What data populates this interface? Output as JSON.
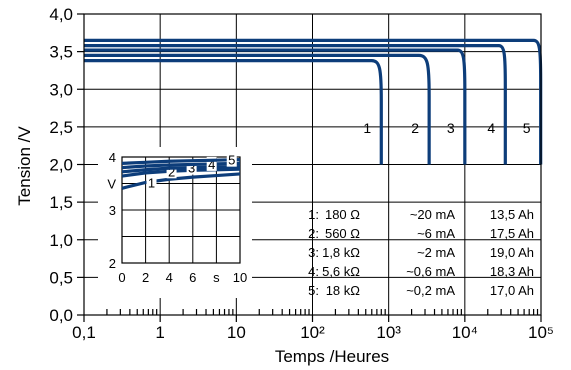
{
  "chart_data": {
    "type": "line",
    "x_scale": "log",
    "x_label": "Temps /Heures",
    "y_label": "Tension /V",
    "xlim": [
      0.1,
      100000
    ],
    "ylim": [
      0.0,
      4.0
    ],
    "x_tick_labels": [
      "0,1",
      "1",
      "10",
      "10²",
      "10³",
      "10⁴",
      "10⁵"
    ],
    "y_tick_labels": [
      "0,0",
      "0,5",
      "1,0",
      "1,5",
      "2,0",
      "2,5",
      "3,0",
      "3,5",
      "4,0"
    ],
    "series_color": "#0d3d7a",
    "series": [
      {
        "label": "1",
        "plateau_v": 3.38,
        "knee_hours": 600,
        "end_hours": 800,
        "end_v": 2.0
      },
      {
        "label": "2",
        "plateau_v": 3.45,
        "knee_hours": 2500,
        "end_hours": 3400,
        "end_v": 2.0
      },
      {
        "label": "3",
        "plateau_v": 3.52,
        "knee_hours": 8000,
        "end_hours": 10000,
        "end_v": 2.0
      },
      {
        "label": "4",
        "plateau_v": 3.58,
        "knee_hours": 28000,
        "end_hours": 34000,
        "end_v": 2.0
      },
      {
        "label": "5",
        "plateau_v": 3.65,
        "knee_hours": 80000,
        "end_hours": 99000,
        "end_v": 2.0
      }
    ],
    "legend": [
      {
        "num": "1:",
        "resistance": "180 Ω",
        "current": "~20 mA",
        "capacity": "13,5 Ah"
      },
      {
        "num": "2:",
        "resistance": "560 Ω",
        "current": "~6 mA",
        "capacity": "17,5 Ah"
      },
      {
        "num": "3:",
        "resistance": "1,8 kΩ",
        "current": "~2 mA",
        "capacity": "19,0 Ah"
      },
      {
        "num": "4:",
        "resistance": "5,6 kΩ",
        "current": "~0,6 mA",
        "capacity": "18,3 Ah"
      },
      {
        "num": "5:",
        "resistance": "18 kΩ",
        "current": "~0,2 mA",
        "capacity": "17,0 Ah"
      }
    ],
    "inset": {
      "x_range": [
        0,
        10
      ],
      "y_range": [
        2,
        4
      ],
      "x_tick_labels": [
        "0",
        "2",
        "4",
        "6",
        "s",
        "10"
      ],
      "y_tick_labels": [
        "2",
        "3",
        "V",
        "4"
      ],
      "series": [
        {
          "label": "1",
          "points": [
            [
              0,
              3.41
            ],
            [
              2,
              3.52
            ],
            [
              4,
              3.58
            ],
            [
              6,
              3.62
            ],
            [
              8,
              3.65
            ],
            [
              10,
              3.68
            ]
          ]
        },
        {
          "label": "2",
          "points": [
            [
              0,
              3.64
            ],
            [
              2,
              3.7
            ],
            [
              4,
              3.73
            ],
            [
              6,
              3.75
            ],
            [
              8,
              3.76
            ],
            [
              10,
              3.77
            ]
          ]
        },
        {
          "label": "3",
          "points": [
            [
              0,
              3.72
            ],
            [
              2,
              3.76
            ],
            [
              4,
              3.79
            ],
            [
              6,
              3.8
            ],
            [
              8,
              3.81
            ],
            [
              10,
              3.82
            ]
          ]
        },
        {
          "label": "4",
          "points": [
            [
              0,
              3.8
            ],
            [
              2,
              3.83
            ],
            [
              4,
              3.85
            ],
            [
              6,
              3.86
            ],
            [
              8,
              3.87
            ],
            [
              10,
              3.88
            ]
          ]
        },
        {
          "label": "5",
          "points": [
            [
              0,
              3.88
            ],
            [
              2,
              3.9
            ],
            [
              4,
              3.92
            ],
            [
              6,
              3.93
            ],
            [
              8,
              3.94
            ],
            [
              10,
              3.95
            ]
          ]
        }
      ]
    }
  }
}
